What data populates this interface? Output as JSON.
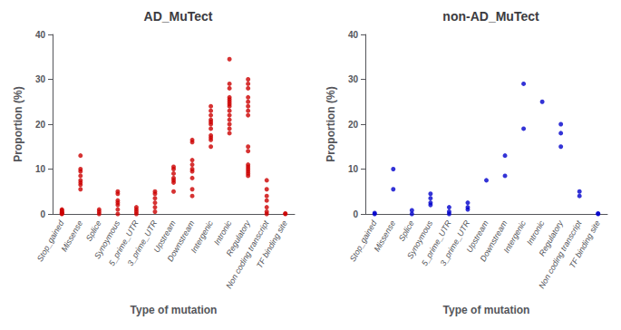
{
  "chart_data": [
    {
      "type": "scatter",
      "title": "AD_MuTect",
      "xlabel": "Type of mutation",
      "ylabel": "Proportion (%)",
      "categories": [
        "Stop_gained",
        "Missense",
        "Splice",
        "Synoymous",
        "5_prime_UTR",
        "3_prime_UTR",
        "Upstream",
        "Downstream",
        "Intergenic",
        "Intronic",
        "Regulatory",
        "Non coding transcript",
        "TF binding site"
      ],
      "values": [
        [
          0.0,
          0.1,
          0.2,
          0.3,
          0.5,
          0.8,
          1.0
        ],
        [
          5.5,
          6.5,
          7.0,
          7.5,
          8.5,
          9.5,
          10.0,
          13.0
        ],
        [
          0.0,
          0.5,
          1.0
        ],
        [
          0.0,
          1.0,
          2.0,
          2.5,
          3.0,
          4.5,
          5.0
        ],
        [
          0.0,
          0.5,
          1.0,
          1.5
        ],
        [
          0.5,
          1.5,
          2.5,
          3.5,
          4.5,
          5.0
        ],
        [
          5.0,
          7.0,
          7.5,
          8.0,
          9.0,
          10.0,
          10.5
        ],
        [
          4.0,
          5.5,
          8.0,
          9.5,
          10.0,
          11.0,
          12.0,
          16.0,
          16.5
        ],
        [
          15.0,
          16.5,
          17.0,
          17.5,
          19.0,
          20.0,
          20.5,
          21.0,
          22.0,
          23.0,
          24.0
        ],
        [
          18.0,
          19.0,
          20.0,
          21.0,
          22.0,
          23.0,
          24.0,
          24.5,
          25.0,
          25.5,
          26.0,
          28.0,
          29.0,
          34.5
        ],
        [
          8.5,
          9.0,
          9.5,
          10.0,
          10.5,
          11.0,
          14.0,
          15.0,
          22.0,
          23.0,
          24.0,
          25.0,
          26.0,
          28.0,
          29.0,
          30.0
        ],
        [
          0.0,
          0.5,
          1.5,
          3.0,
          4.0,
          5.5,
          7.5
        ],
        [
          0.0,
          0.1
        ]
      ],
      "color": "#cc0000",
      "ylim": [
        0,
        40
      ],
      "yticks": [
        0,
        10,
        20,
        30,
        40
      ],
      "grid": false
    },
    {
      "type": "scatter",
      "title": "non-AD_MuTect",
      "xlabel": "Type of mutation",
      "ylabel": "Proportion (%)",
      "categories": [
        "Stop_gained",
        "Missense",
        "Splice",
        "Synoymous",
        "5_prime_UTR",
        "3_prime_UTR",
        "Upstream",
        "Downstream",
        "Intergenic",
        "Intronic",
        "Regulatory",
        "Non coding transcript",
        "TF binding site"
      ],
      "values": [
        [
          0.0,
          0.2
        ],
        [
          5.5,
          10.0
        ],
        [
          0.0,
          0.8
        ],
        [
          2.0,
          2.5,
          3.5,
          4.5
        ],
        [
          0.0,
          0.5,
          1.5
        ],
        [
          1.0,
          1.5,
          2.5
        ],
        [
          7.5
        ],
        [
          8.5,
          13.0
        ],
        [
          19.0,
          29.0
        ],
        [
          25.0
        ],
        [
          15.0,
          18.0,
          20.0
        ],
        [
          4.0,
          5.0
        ],
        [
          0.0,
          0.1
        ]
      ],
      "color": "#0000cc",
      "ylim": [
        0,
        40
      ],
      "yticks": [
        0,
        10,
        20,
        30,
        40
      ],
      "grid": false
    }
  ]
}
